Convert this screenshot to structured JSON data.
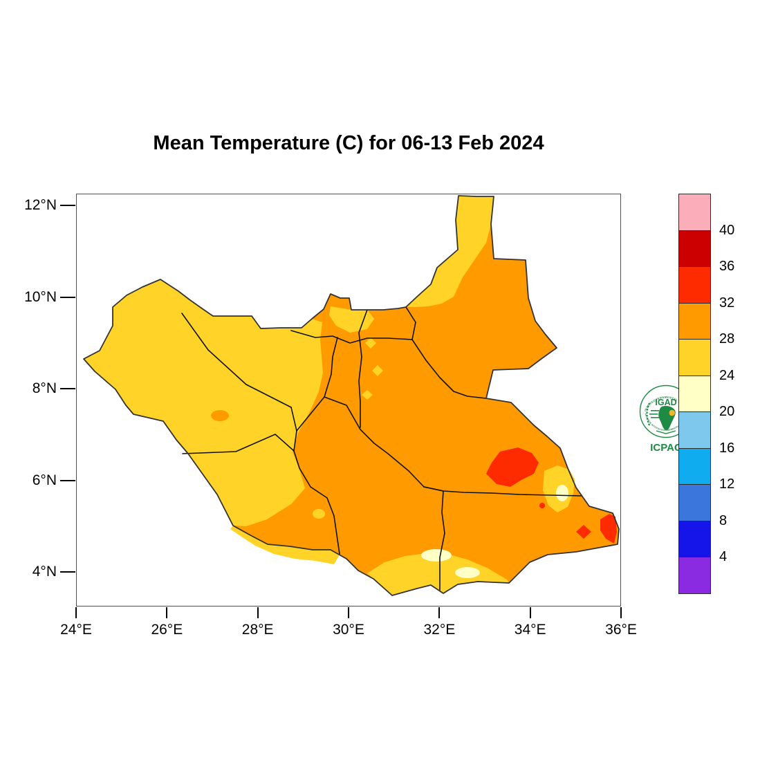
{
  "title": "Mean Temperature (C) for 06-13 Feb 2024",
  "axes": {
    "x": {
      "ticks": [
        {
          "label": "24°E",
          "lon": 24
        },
        {
          "label": "26°E",
          "lon": 26
        },
        {
          "label": "28°E",
          "lon": 28
        },
        {
          "label": "30°E",
          "lon": 30
        },
        {
          "label": "32°E",
          "lon": 32
        },
        {
          "label": "34°E",
          "lon": 34
        },
        {
          "label": "36°E",
          "lon": 36
        }
      ]
    },
    "y": {
      "ticks": [
        {
          "label": "12°N",
          "lat": 12
        },
        {
          "label": "10°N",
          "lat": 10
        },
        {
          "label": "8°N",
          "lat": 8
        },
        {
          "label": "6°N",
          "lat": 6
        },
        {
          "label": "4°N",
          "lat": 4
        }
      ]
    }
  },
  "colorbar": {
    "unit": "C",
    "colors": [
      "#FBAEB9",
      "#CC0000",
      "#FF2B00",
      "#FF9A00",
      "#FFD327",
      "#FFFFC6",
      "#7EC8EE",
      "#0FACF0",
      "#3B76DD",
      "#1515EA",
      "#8A2BE2"
    ],
    "boundary_labels": [
      "40",
      "36",
      "32",
      "28",
      "24",
      "20",
      "16",
      "12",
      "8",
      "4"
    ]
  },
  "palette": {
    "yellow": "#FFD327",
    "orange": "#FF9A00",
    "red": "#FF2B00",
    "dark_red": "#CC0000",
    "pink": "#FBAEB9",
    "cream": "#FFFFC6",
    "map_outline": "#333333",
    "state_line": "#111111",
    "logo_green": "#1E8A44",
    "logo_yellow": "#F0B72E"
  },
  "logo": {
    "org": "IGAD",
    "center": "ICPAC",
    "ring_text_top": "INTERGOVERNMENTAL AUTHORITY ON DEVELOPMENT",
    "ring_text_bottom": "AUTORITE INTERGOUVERNEMENTALE POUR LE DEVELOPPEMENT"
  }
}
